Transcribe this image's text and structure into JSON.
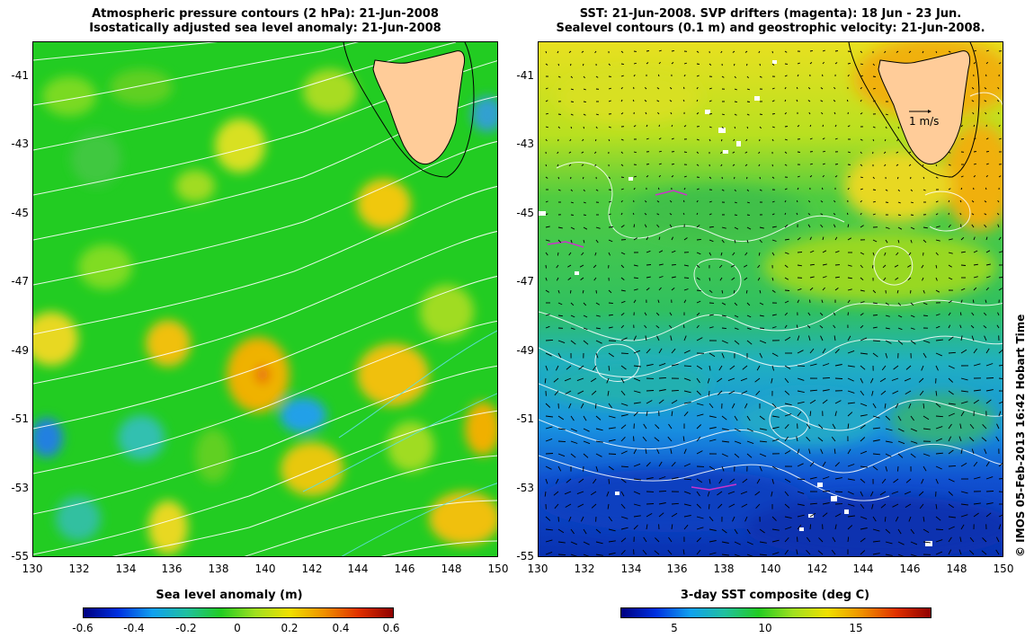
{
  "left_map": {
    "title_line1": "Atmospheric pressure contours (2 hPa): 21-Jun-2008",
    "title_line2": "Isostatically adjusted sea level anomaly: 21-Jun-2008",
    "lat_ticks": [
      "-41",
      "-43",
      "-45",
      "-47",
      "-49",
      "-51",
      "-53",
      "-55"
    ],
    "lon_ticks": [
      "130",
      "132",
      "134",
      "136",
      "138",
      "140",
      "142",
      "144",
      "146",
      "148",
      "150"
    ],
    "colorbar_title": "Sea level anomaly (m)",
    "colorbar_ticks": [
      "-0.6",
      "-0.4",
      "-0.2",
      "0",
      "0.2",
      "0.4",
      "0.6"
    ],
    "colorbar_range": [
      -0.6,
      0.6
    ],
    "background_color": "#22cc22"
  },
  "right_map": {
    "title_line1": "SST: 21-Jun-2008. SVP drifters (magenta): 18 Jun - 23 Jun.",
    "title_line2": "Sealevel contours (0.1 m) and geostrophic velocity: 21-Jun-2008.",
    "lat_ticks": [
      "-41",
      "-43",
      "-45",
      "-47",
      "-49",
      "-51",
      "-53",
      "-55"
    ],
    "lon_ticks": [
      "130",
      "132",
      "134",
      "136",
      "138",
      "140",
      "142",
      "144",
      "146",
      "148",
      "150"
    ],
    "velocity_scale_label": "1 m/s",
    "colorbar_title": "3-day SST composite (deg C)",
    "colorbar_ticks": [
      "5",
      "10",
      "15"
    ],
    "drifter_color": "#cc33cc",
    "land_color": "#ffcc99"
  },
  "credit": "© IMOS 05-Feb-2013 16:42 Hobart Time"
}
